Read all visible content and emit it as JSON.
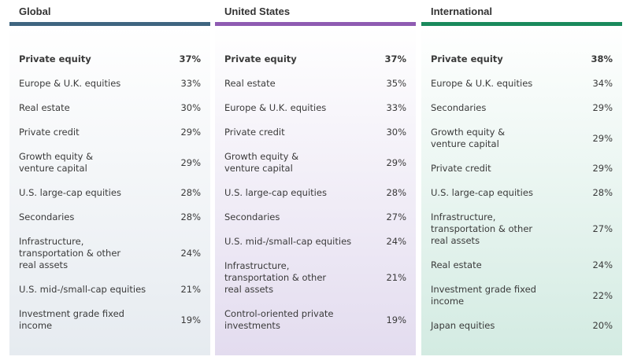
{
  "columns": [
    {
      "title": "Global",
      "color": "#3f6580",
      "tint": "#e6ebf0",
      "rows": [
        {
          "label": "Private equity",
          "value": "37%"
        },
        {
          "label": "Europe & U.K. equities",
          "value": "33%"
        },
        {
          "label": "Real estate",
          "value": "30%"
        },
        {
          "label": "Private credit",
          "value": "29%"
        },
        {
          "label": "Growth equity &\nventure capital",
          "value": "29%"
        },
        {
          "label": "U.S. large-cap equities",
          "value": "28%"
        },
        {
          "label": "Secondaries",
          "value": "28%"
        },
        {
          "label": "Infrastructure,\ntransportation & other\nreal assets",
          "value": "24%"
        },
        {
          "label": "U.S. mid-/small-cap equities",
          "value": "21%"
        },
        {
          "label": "Investment grade fixed income",
          "value": "19%"
        }
      ]
    },
    {
      "title": "United States",
      "color": "#8f5bb2",
      "tint": "#e3dcef",
      "rows": [
        {
          "label": "Private equity",
          "value": "37%"
        },
        {
          "label": "Real estate",
          "value": "35%"
        },
        {
          "label": "Europe & U.K. equities",
          "value": "33%"
        },
        {
          "label": "Private credit",
          "value": "30%"
        },
        {
          "label": "Growth equity &\nventure capital",
          "value": "29%"
        },
        {
          "label": "U.S. large-cap equities",
          "value": "28%"
        },
        {
          "label": "Secondaries",
          "value": "27%"
        },
        {
          "label": "U.S. mid-/small-cap equities",
          "value": "24%"
        },
        {
          "label": "Infrastructure,\ntransportation & other\nreal assets",
          "value": "21%"
        },
        {
          "label": "Control-oriented private\ninvestments",
          "value": "19%"
        }
      ]
    },
    {
      "title": "International",
      "color": "#1a8a5c",
      "tint": "#d3ebe2",
      "rows": [
        {
          "label": "Private equity",
          "value": "38%"
        },
        {
          "label": "Europe & U.K. equities",
          "value": "34%"
        },
        {
          "label": "Secondaries",
          "value": "29%"
        },
        {
          "label": "Growth equity &\nventure capital",
          "value": "29%"
        },
        {
          "label": "Private credit",
          "value": "29%"
        },
        {
          "label": "U.S. large-cap equities",
          "value": "28%"
        },
        {
          "label": "Infrastructure,\ntransportation & other\nreal assets",
          "value": "27%"
        },
        {
          "label": "Real estate",
          "value": "24%"
        },
        {
          "label": "Investment grade fixed income",
          "value": "22%"
        },
        {
          "label": "Japan equities",
          "value": "20%"
        }
      ]
    }
  ]
}
